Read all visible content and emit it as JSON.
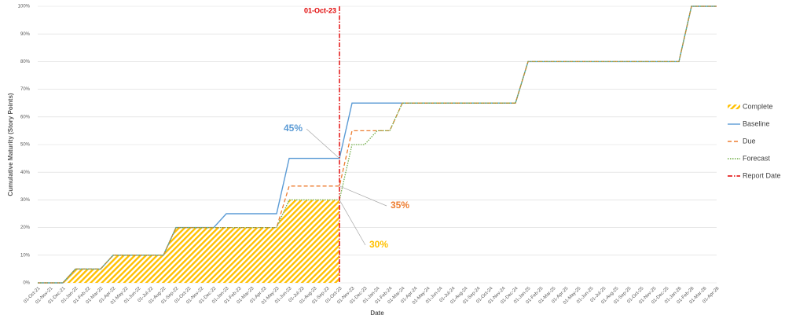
{
  "chart_data": {
    "type": "line",
    "y_label": "Cumulative Maturity (Story Points)",
    "x_label": "Date",
    "categories": [
      "01-Oct-21",
      "01-Nov-21",
      "01-Dec-21",
      "01-Jan-22",
      "01-Feb-22",
      "01-Mar-22",
      "01-Apr-22",
      "01-May-22",
      "01-Jun-22",
      "01-Jul-22",
      "01-Aug-22",
      "01-Sep-22",
      "01-Oct-22",
      "01-Nov-22",
      "01-Dec-22",
      "01-Jan-23",
      "01-Feb-23",
      "01-Mar-23",
      "01-Apr-23",
      "01-May-23",
      "01-Jun-23",
      "01-Jul-23",
      "01-Aug-23",
      "01-Sep-23",
      "01-Oct-23",
      "01-Nov-23",
      "01-Dec-23",
      "01-Jan-24",
      "01-Feb-24",
      "01-Mar-24",
      "01-Apr-24",
      "01-May-24",
      "01-Jun-24",
      "01-Jul-24",
      "01-Aug-24",
      "01-Sep-24",
      "01-Oct-24",
      "01-Nov-24",
      "01-Dec-24",
      "01-Jan-25",
      "01-Feb-25",
      "01-Mar-25",
      "01-Apr-25",
      "01-May-25",
      "01-Jun-25",
      "01-Jul-25",
      "01-Aug-25",
      "01-Sep-25",
      "01-Oct-25",
      "01-Nov-25",
      "01-Dec-25",
      "01-Jan-26",
      "01-Feb-26",
      "01-Mar-26",
      "01-Apr-26"
    ],
    "series": [
      {
        "name": "Complete",
        "color": "#ffc000",
        "style": "hatched-area",
        "values": [
          0,
          0,
          0,
          5,
          5,
          5,
          10,
          10,
          10,
          10,
          10,
          20,
          20,
          20,
          20,
          20,
          20,
          20,
          20,
          20,
          30,
          30,
          30,
          30,
          30,
          null,
          null,
          null,
          null,
          null,
          null,
          null,
          null,
          null,
          null,
          null,
          null,
          null,
          null,
          null,
          null,
          null,
          null,
          null,
          null,
          null,
          null,
          null,
          null,
          null,
          null,
          null,
          null,
          null,
          null
        ]
      },
      {
        "name": "Baseline",
        "color": "#5b9bd5",
        "style": "solid",
        "values": [
          0,
          0,
          0,
          5,
          5,
          5,
          10,
          10,
          10,
          10,
          10,
          20,
          20,
          20,
          20,
          25,
          25,
          25,
          25,
          25,
          45,
          45,
          45,
          45,
          45,
          65,
          65,
          65,
          65,
          65,
          65,
          65,
          65,
          65,
          65,
          65,
          65,
          65,
          65,
          80,
          80,
          80,
          80,
          80,
          80,
          80,
          80,
          80,
          80,
          80,
          80,
          80,
          100,
          100,
          100
        ]
      },
      {
        "name": "Due",
        "color": "#ed7d31",
        "style": "dashed",
        "values": [
          0,
          0,
          0,
          5,
          5,
          5,
          10,
          10,
          10,
          10,
          10,
          20,
          20,
          20,
          20,
          20,
          20,
          20,
          20,
          20,
          35,
          35,
          35,
          35,
          35,
          55,
          55,
          55,
          55,
          65,
          65,
          65,
          65,
          65,
          65,
          65,
          65,
          65,
          65,
          80,
          80,
          80,
          80,
          80,
          80,
          80,
          80,
          80,
          80,
          80,
          80,
          80,
          100,
          100,
          100
        ]
      },
      {
        "name": "Forecast",
        "color": "#70ad47",
        "style": "dotted",
        "values": [
          0,
          0,
          0,
          5,
          5,
          5,
          10,
          10,
          10,
          10,
          10,
          20,
          20,
          20,
          20,
          20,
          20,
          20,
          20,
          20,
          30,
          30,
          30,
          30,
          30,
          50,
          50,
          55,
          55,
          65,
          65,
          65,
          65,
          65,
          65,
          65,
          65,
          65,
          65,
          80,
          80,
          80,
          80,
          80,
          80,
          80,
          80,
          80,
          80,
          80,
          80,
          80,
          100,
          100,
          100
        ]
      }
    ],
    "report_date": {
      "name": "Report Date",
      "label": "01-Oct-23",
      "color": "#e00000"
    },
    "annotations": [
      "45%",
      "35%",
      "30%"
    ],
    "ylim": [
      0,
      100
    ],
    "yticks": [
      {
        "value": 0,
        "label": "0%"
      },
      {
        "value": 10,
        "label": "10%"
      },
      {
        "value": 20,
        "label": "20%"
      },
      {
        "value": 30,
        "label": "30%"
      },
      {
        "value": 40,
        "label": "40%"
      },
      {
        "value": 50,
        "label": "50%"
      },
      {
        "value": 60,
        "label": "60%"
      },
      {
        "value": 70,
        "label": "70%"
      },
      {
        "value": 80,
        "label": "80%"
      },
      {
        "value": 90,
        "label": "90%"
      },
      {
        "value": 100,
        "label": "100%"
      }
    ],
    "grid": true,
    "legend": "right"
  }
}
